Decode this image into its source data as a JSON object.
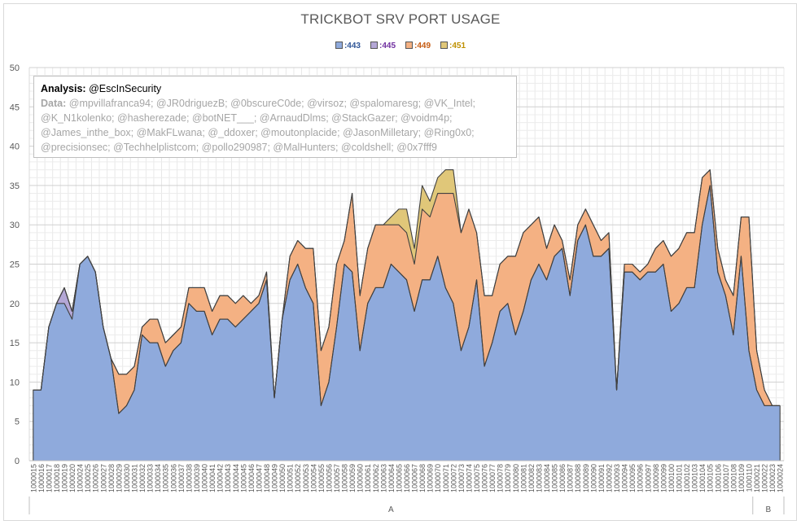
{
  "chart_data": {
    "type": "area",
    "stacked": true,
    "title": "TRICKBOT SRV PORT USAGE",
    "ylim": [
      0,
      50
    ],
    "yticks": [
      0,
      5,
      10,
      15,
      20,
      25,
      30,
      35,
      40,
      45,
      50
    ],
    "grid": true,
    "legend_position": "top",
    "categories": [
      "1000015",
      "1000016",
      "1000017",
      "1000018",
      "1000019",
      "1000020",
      "1000024",
      "1000025",
      "1000026",
      "1000027",
      "1000028",
      "1000029",
      "1000030",
      "1000031",
      "1000032",
      "1000033",
      "1000034",
      "1000035",
      "1000036",
      "1000037",
      "1000038",
      "1000039",
      "1000040",
      "1000041",
      "1000042",
      "1000043",
      "1000044",
      "1000045",
      "1000046",
      "1000047",
      "1000048",
      "1000049",
      "1000050",
      "1000051",
      "1000052",
      "1000053",
      "1000054",
      "1000055",
      "1000056",
      "1000057",
      "1000058",
      "1000059",
      "1000060",
      "1000061",
      "1000062",
      "1000063",
      "1000064",
      "1000065",
      "1000066",
      "1000067",
      "1000068",
      "1000069",
      "1000070",
      "1000071",
      "1000072",
      "1000073",
      "1000074",
      "1000075",
      "1000076",
      "1000077",
      "1000078",
      "1000079",
      "1000080",
      "1000081",
      "1000082",
      "1000083",
      "1000084",
      "1000085",
      "1000086",
      "1000087",
      "1000088",
      "1000089",
      "1000090",
      "1000091",
      "1000092",
      "1000093",
      "1000094",
      "1000095",
      "1000096",
      "1000097",
      "1000098",
      "1000099",
      "1000100",
      "1000101",
      "1000102",
      "1000103",
      "1000104",
      "1000105",
      "1000106",
      "1000107",
      "1000108",
      "1000109",
      "1000110",
      "1000021",
      "1000022",
      "1000023",
      "1000024"
    ],
    "groups": [
      {
        "label": "A",
        "start": 0,
        "end": 92
      },
      {
        "label": "B",
        "start": 93,
        "end": 96
      }
    ],
    "series": [
      {
        "name": ":443",
        "color": "#8faadc",
        "text_color": "#2f5597",
        "values": [
          9,
          9,
          17,
          20,
          20,
          18,
          25,
          26,
          24,
          17,
          13,
          6,
          7,
          9,
          16,
          15,
          15,
          12,
          14,
          15,
          20,
          19,
          19,
          16,
          18,
          18,
          17,
          18,
          19,
          20,
          23,
          8,
          18,
          23,
          25,
          22,
          20,
          7,
          10,
          17,
          25,
          24,
          14,
          20,
          22,
          22,
          25,
          24,
          23,
          19,
          23,
          23,
          26,
          22,
          20,
          14,
          17,
          23,
          12,
          15,
          19,
          20,
          16,
          19,
          23,
          25,
          23,
          26,
          27,
          21,
          28,
          30,
          26,
          26,
          27,
          9,
          24,
          24,
          23,
          24,
          24,
          25,
          19,
          20,
          22,
          22,
          30,
          35,
          24,
          21,
          16,
          26,
          14,
          9,
          7,
          7,
          7
        ]
      },
      {
        "name": ":445",
        "color": "#b4a7d6",
        "text_color": "#7030a0",
        "values": [
          0,
          0,
          0,
          0,
          2,
          1,
          0,
          0,
          0,
          0,
          0,
          0,
          0,
          0,
          0,
          0,
          0,
          0,
          0,
          0,
          0,
          0,
          0,
          0,
          0,
          0,
          0,
          0,
          0,
          0,
          0,
          0,
          0,
          0,
          0,
          0,
          0,
          0,
          0,
          0,
          0,
          0,
          0,
          0,
          0,
          0,
          0,
          0,
          0,
          0,
          0,
          0,
          0,
          0,
          0,
          0,
          0,
          0,
          0,
          0,
          0,
          0,
          0,
          0,
          0,
          0,
          0,
          0,
          0,
          0,
          0,
          0,
          0,
          0,
          0,
          0,
          0,
          0,
          0,
          0,
          0,
          0,
          0,
          0,
          0,
          0,
          0,
          0,
          0,
          0,
          0,
          0,
          0,
          0,
          0,
          0,
          0
        ]
      },
      {
        "name": ":449",
        "color": "#f4b183",
        "text_color": "#c55a11",
        "values": [
          0,
          0,
          0,
          0,
          0,
          0,
          0,
          0,
          0,
          0,
          0,
          5,
          4,
          3,
          1,
          3,
          3,
          3,
          2,
          2,
          2,
          3,
          3,
          3,
          3,
          3,
          3,
          3,
          1,
          1,
          1,
          0,
          0,
          3,
          3,
          5,
          7,
          7,
          7,
          8,
          3,
          10,
          7,
          7,
          8,
          8,
          5,
          6,
          6,
          6,
          9,
          8,
          8,
          12,
          14,
          15,
          15,
          6,
          9,
          6,
          6,
          6,
          10,
          10,
          7,
          6,
          4,
          4,
          1,
          2,
          2,
          2,
          4,
          2,
          2,
          0,
          1,
          1,
          1,
          1,
          3,
          3,
          7,
          7,
          7,
          7,
          6,
          2,
          3,
          2,
          5,
          5,
          17,
          5,
          2,
          0,
          0
        ]
      },
      {
        "name": ":451",
        "color": "#e0c779",
        "text_color": "#bf9000",
        "values": [
          0,
          0,
          0,
          0,
          0,
          0,
          0,
          0,
          0,
          0,
          0,
          0,
          0,
          0,
          0,
          0,
          0,
          0,
          0,
          0,
          0,
          0,
          0,
          0,
          0,
          0,
          0,
          0,
          0,
          0,
          0,
          0,
          0,
          0,
          0,
          0,
          0,
          0,
          0,
          0,
          0,
          0,
          0,
          0,
          0,
          0,
          1,
          2,
          3,
          2,
          3,
          2,
          2,
          3,
          3,
          0,
          0,
          0,
          0,
          0,
          0,
          0,
          0,
          0,
          0,
          0,
          0,
          0,
          0,
          0,
          0,
          0,
          0,
          0,
          0,
          0,
          0,
          0,
          0,
          0,
          0,
          0,
          0,
          0,
          0,
          0,
          0,
          0,
          0,
          0,
          0,
          0,
          0,
          0,
          0,
          0,
          0
        ]
      }
    ]
  },
  "note": {
    "analysis_label": "Analysis:",
    "analysis_value": "@EscInSecurity",
    "data_label": "Data:",
    "data_value": "@mpvillafranca94; @JR0driguezB; @0bscureC0de; @virsoz; @spalomaresg; @VK_Intel; @K_N1kolenko; @hasherezade; @botNET___; @ArnaudDlms; @StackGazer; @voidm4p; @James_inthe_box; @MakFLwana; @_ddoxer; @moutonplacide; @JasonMilletary; @Ring0x0; @precisionsec; @Techhelplistcom; @pollo290987; @MalHunters; @coldshell; @0x7fff9"
  }
}
